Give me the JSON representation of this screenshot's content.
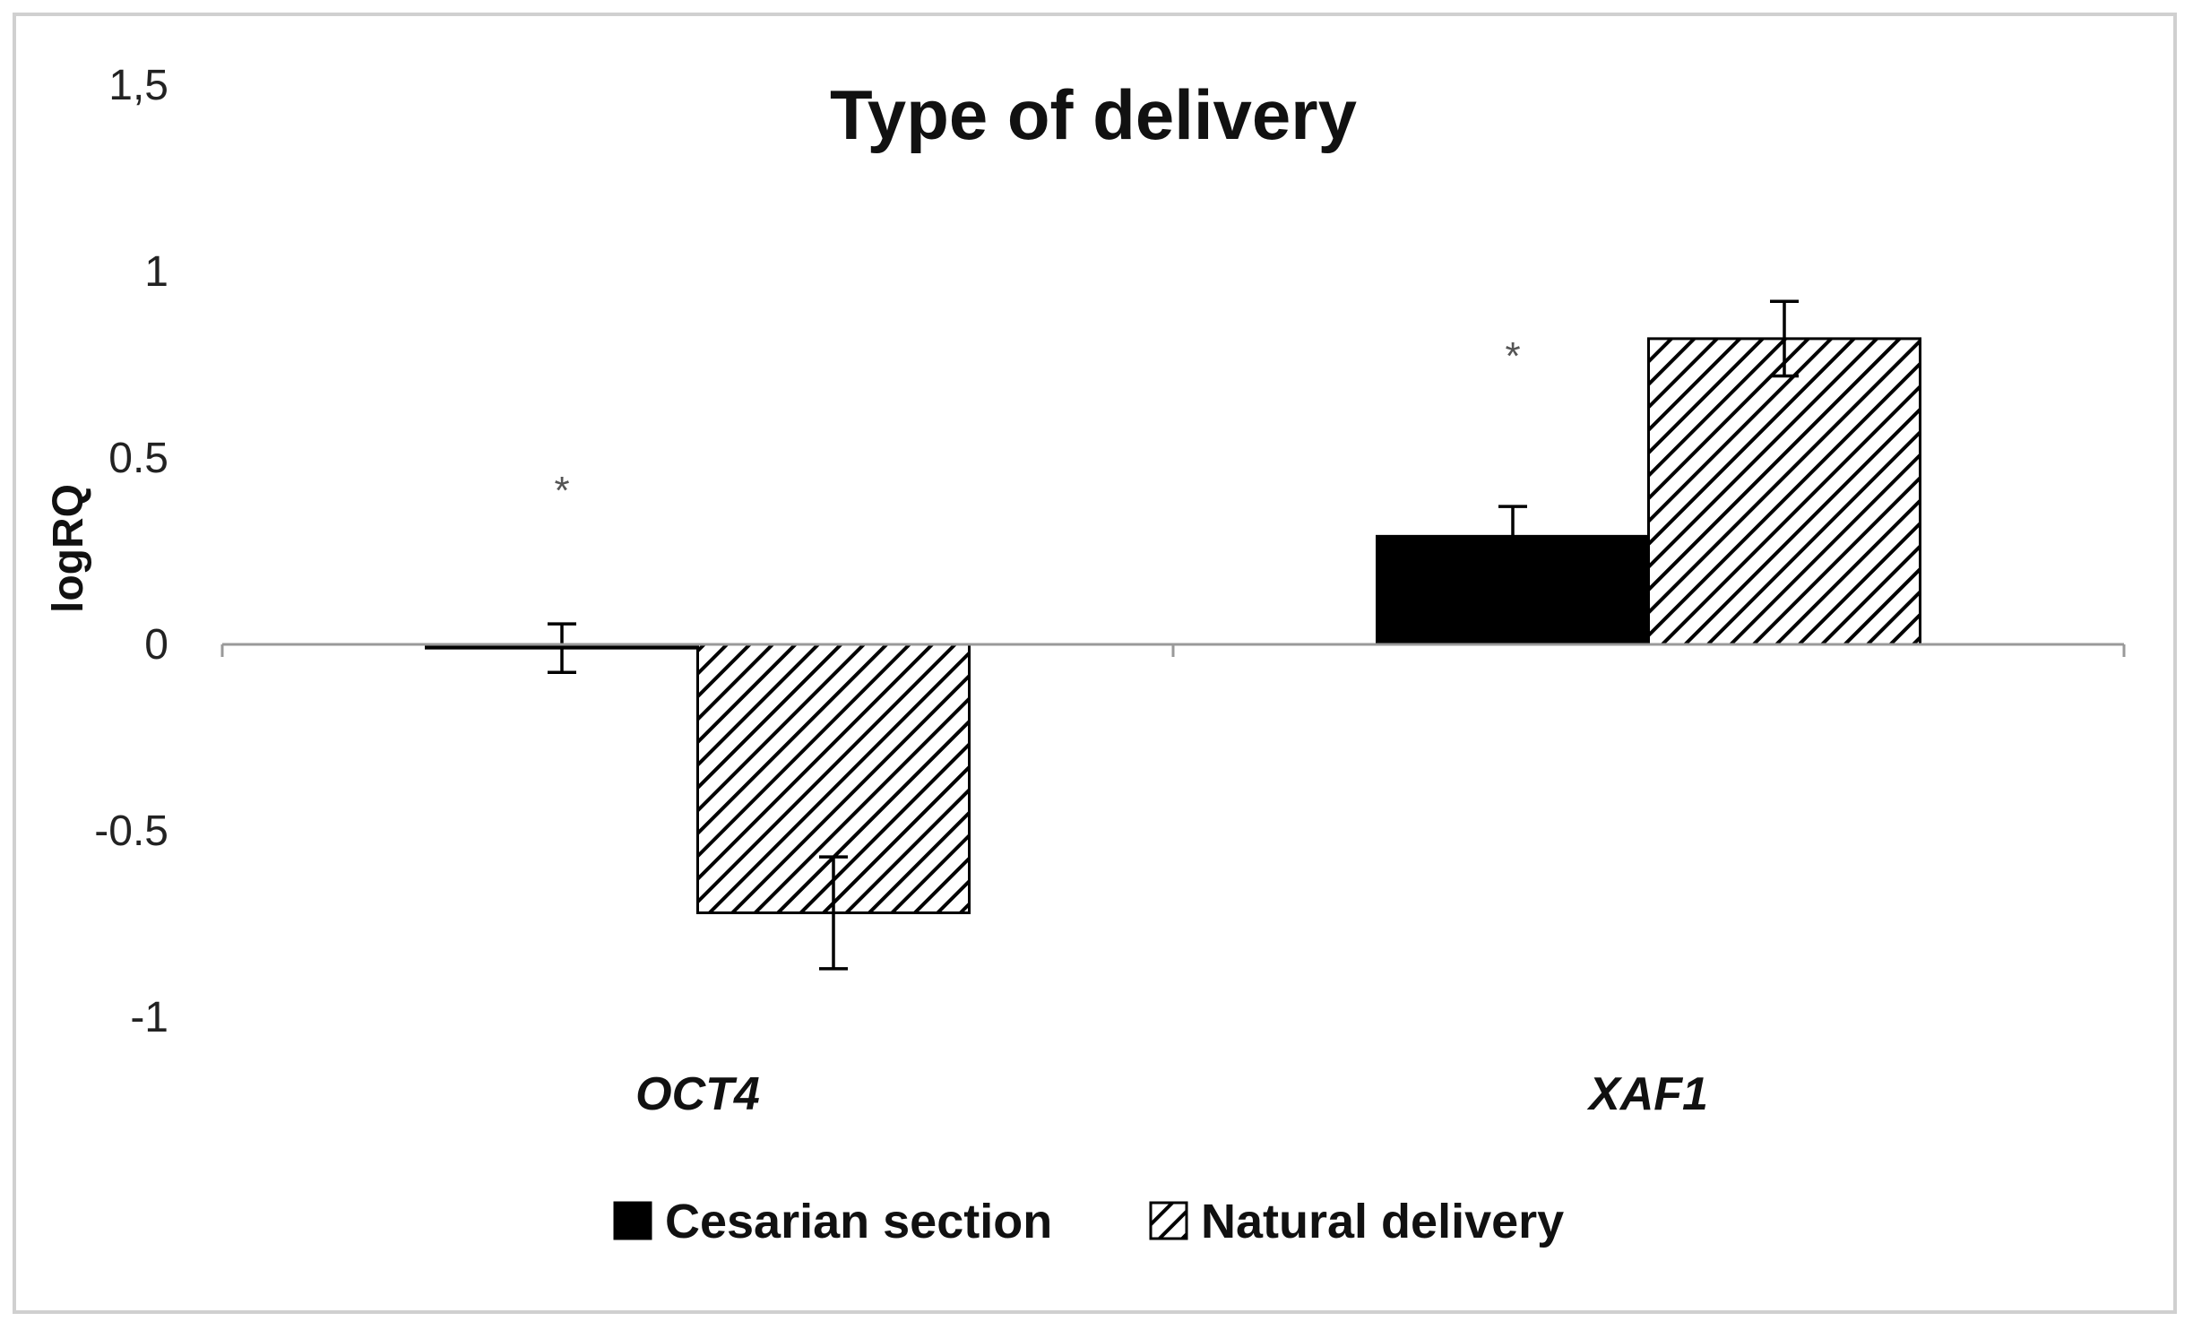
{
  "chart_data": {
    "type": "bar",
    "title": "Type of delivery",
    "ylabel": "logRQ",
    "xlabel": "",
    "categories": [
      "OCT4",
      "XAF1"
    ],
    "ylim": [
      -1,
      1.5
    ],
    "yticks": [
      {
        "value": 1.5,
        "label": "1,5"
      },
      {
        "value": 1,
        "label": "1"
      },
      {
        "value": 0.5,
        "label": "0.5"
      },
      {
        "value": 0,
        "label": "0"
      },
      {
        "value": -0.5,
        "label": "-0.5"
      },
      {
        "value": -1,
        "label": "-1"
      }
    ],
    "series": [
      {
        "name": "Cesarian section",
        "values": [
          -0.01,
          0.29
        ],
        "errors": [
          0.065,
          0.08
        ],
        "pattern": "solid",
        "color": "#000000"
      },
      {
        "name": "Natural delivery",
        "values": [
          -0.72,
          0.82
        ],
        "errors": [
          0.15,
          0.1
        ],
        "pattern": "hatch",
        "color": "#000000"
      }
    ],
    "annotations": [
      {
        "text": "*",
        "category": "OCT4",
        "series": 0,
        "value": 0.44
      },
      {
        "text": "*",
        "category": "XAF1",
        "series": 0,
        "value": 0.8
      }
    ],
    "grid": false,
    "legend": "bottom"
  }
}
